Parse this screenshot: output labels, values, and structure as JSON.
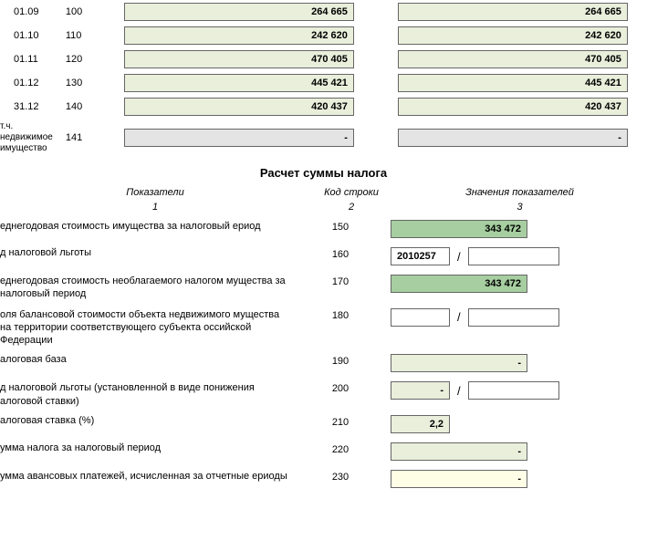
{
  "topRows": [
    {
      "date": "01.09",
      "code": "100",
      "v1": "264 665",
      "v2": "264 665",
      "cls": ""
    },
    {
      "date": "01.10",
      "code": "110",
      "v1": "242 620",
      "v2": "242 620",
      "cls": ""
    },
    {
      "date": "01.11",
      "code": "120",
      "v1": "470 405",
      "v2": "470 405",
      "cls": ""
    },
    {
      "date": "01.12",
      "code": "130",
      "v1": "445 421",
      "v2": "445 421",
      "cls": ""
    },
    {
      "date": "31.12",
      "code": "140",
      "v1": "420 437",
      "v2": "420 437",
      "cls": ""
    },
    {
      "date": "т.ч. недвижимое имущество",
      "code": "141",
      "v1": "-",
      "v2": "-",
      "cls": "gray"
    }
  ],
  "sectionTitle": "Расчет суммы налога",
  "headers": {
    "c1": "Показатели",
    "c2": "Код строки",
    "c3": "Значения показателей"
  },
  "subHeaders": {
    "c1": "1",
    "c2": "2",
    "c3": "3"
  },
  "rows": {
    "r150": {
      "label": "еднегодовая стоимость имущества за налоговый ериод",
      "code": "150",
      "value": "343 472"
    },
    "r160": {
      "label": "д налоговой льготы",
      "code": "160",
      "v1": "2010257",
      "v2": ""
    },
    "r170": {
      "label": "еднегодовая стоимость необлагаемого налогом мущества за налоговый период",
      "code": "170",
      "value": "343 472"
    },
    "r180": {
      "label": "оля балансовой стоимости объекта недвижимого мущества на территории соответствующего субъекта оссийской Федерации",
      "code": "180",
      "v1": "",
      "v2": ""
    },
    "r190": {
      "label": "алоговая база",
      "code": "190",
      "value": "-"
    },
    "r200": {
      "label": "д налоговой льготы (установленной в виде понижения алоговой ставки)",
      "code": "200",
      "v1": "-",
      "v2": ""
    },
    "r210": {
      "label": "алоговая ставка (%)",
      "code": "210",
      "value": "2,2"
    },
    "r220": {
      "label": "умма налога за налоговый период",
      "code": "220",
      "value": "-"
    },
    "r230": {
      "label": "умма авансовых платежей, исчисленная за отчетные ериоды",
      "code": "230",
      "value": "-"
    }
  }
}
